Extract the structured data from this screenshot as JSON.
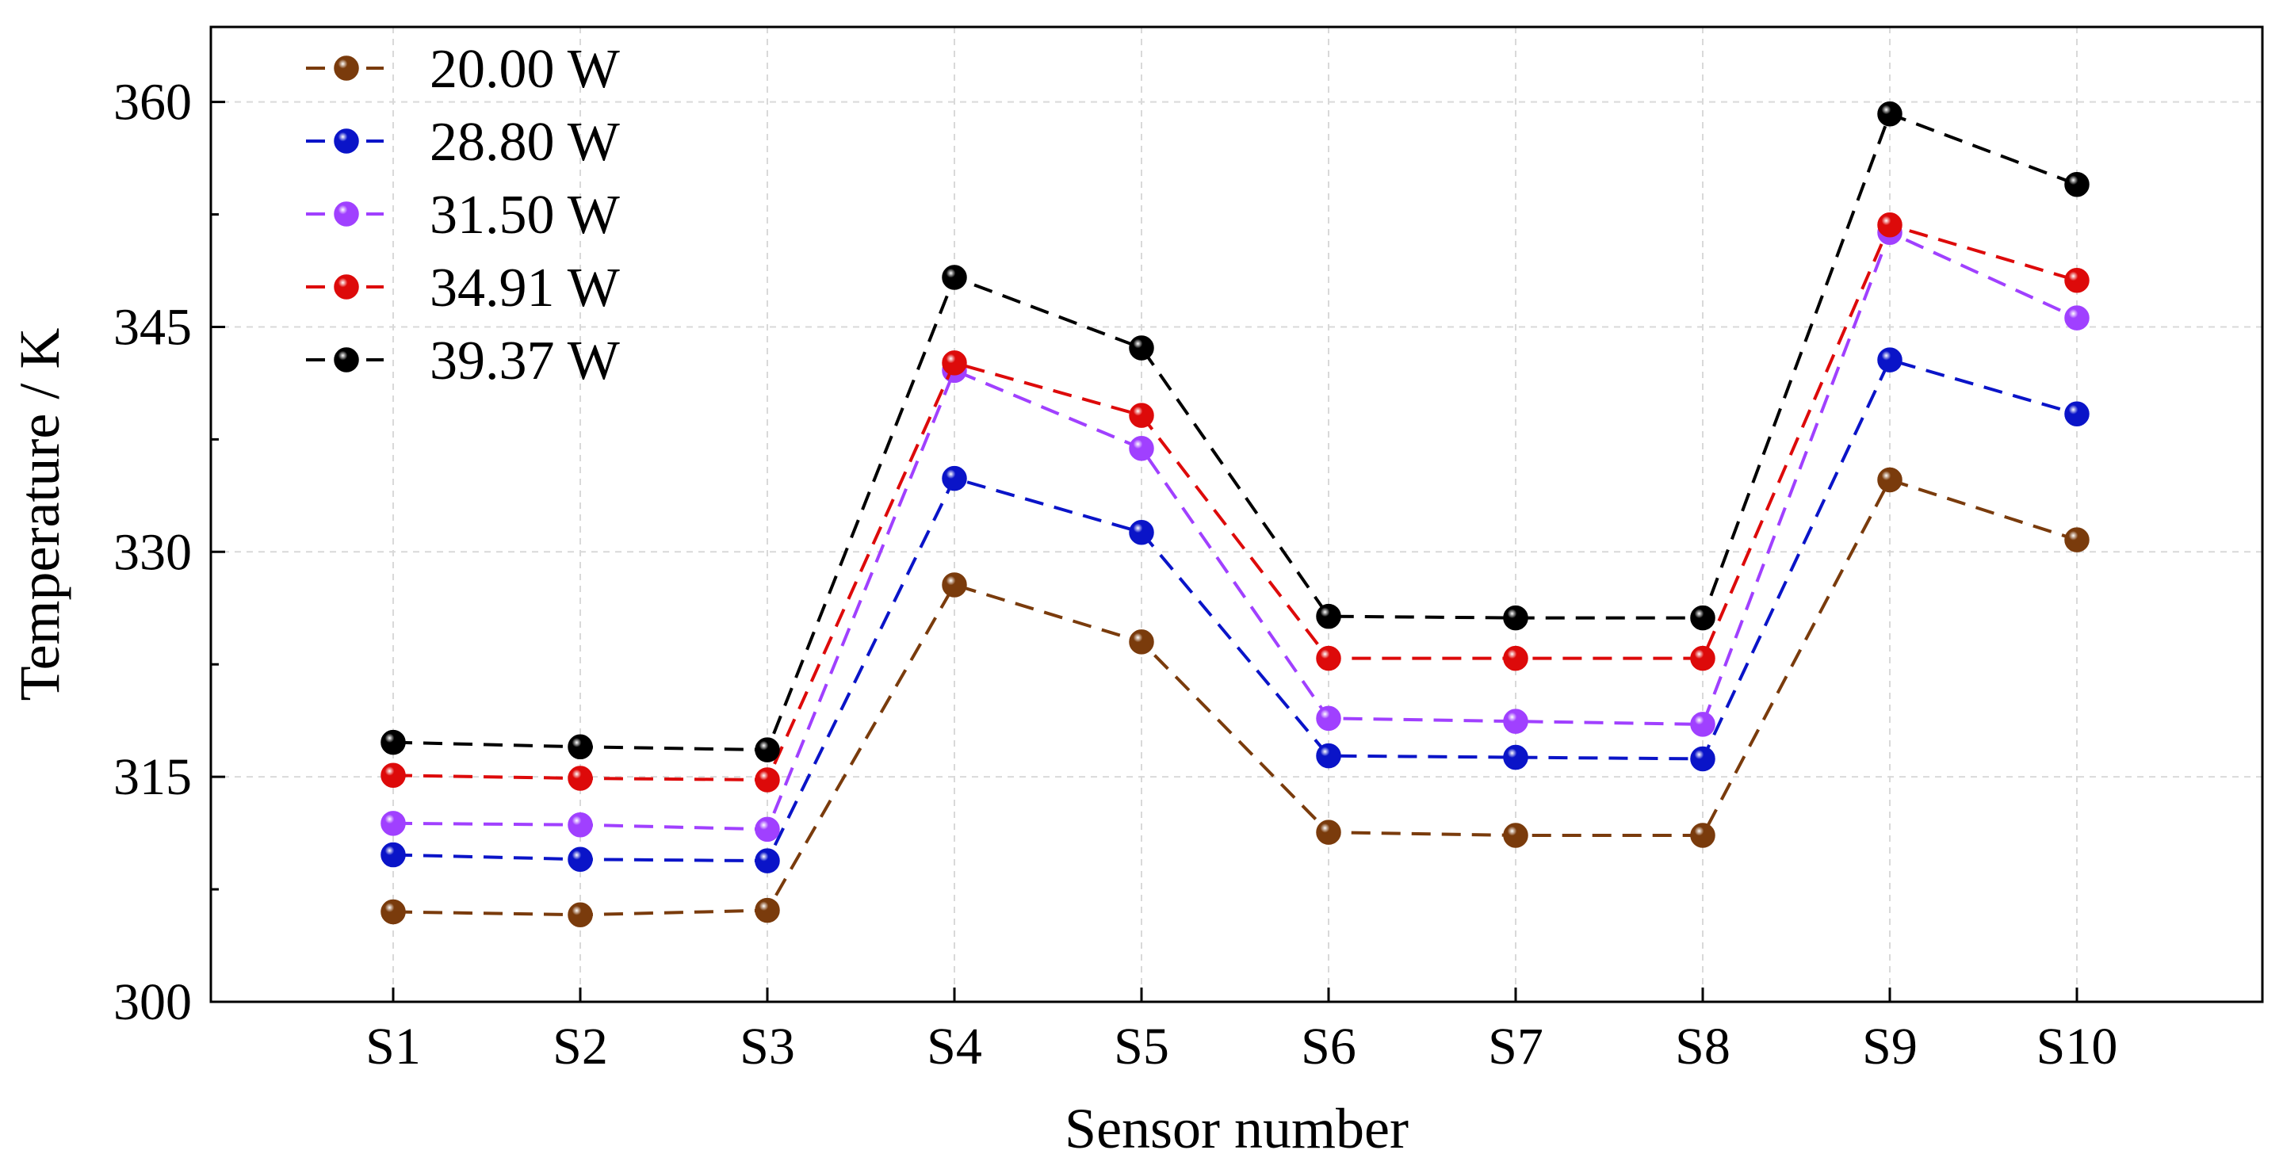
{
  "chart_data": {
    "type": "line",
    "title": "",
    "xlabel": "Sensor number",
    "ylabel": "Temperature / K",
    "categories": [
      "S1",
      "S2",
      "S3",
      "S4",
      "S5",
      "S6",
      "S7",
      "S8",
      "S9",
      "S10"
    ],
    "ylim": [
      300,
      365
    ],
    "yticks": [
      300,
      315,
      330,
      345,
      360
    ],
    "grid": true,
    "legend_position": "top-left",
    "series": [
      {
        "name": "20.00 W",
        "color": "#7a3b0c",
        "values": [
          306.0,
          305.8,
          306.1,
          327.8,
          324.0,
          311.3,
          311.1,
          311.1,
          334.8,
          330.8
        ]
      },
      {
        "name": "28.80 W",
        "color": "#0a14c8",
        "values": [
          309.8,
          309.5,
          309.4,
          334.9,
          331.3,
          316.4,
          316.3,
          316.2,
          342.8,
          339.2
        ]
      },
      {
        "name": "31.50 W",
        "color": "#a040ff",
        "values": [
          311.9,
          311.8,
          311.5,
          342.1,
          336.9,
          318.9,
          318.7,
          318.5,
          351.3,
          345.6
        ]
      },
      {
        "name": "34.91 W",
        "color": "#dd0a0a",
        "values": [
          315.1,
          314.9,
          314.8,
          342.6,
          339.1,
          322.9,
          322.9,
          322.9,
          351.8,
          348.1
        ]
      },
      {
        "name": "39.37 W",
        "color": "#000000",
        "values": [
          317.3,
          317.0,
          316.8,
          348.3,
          343.6,
          325.7,
          325.6,
          325.6,
          359.2,
          354.5
        ]
      }
    ]
  }
}
